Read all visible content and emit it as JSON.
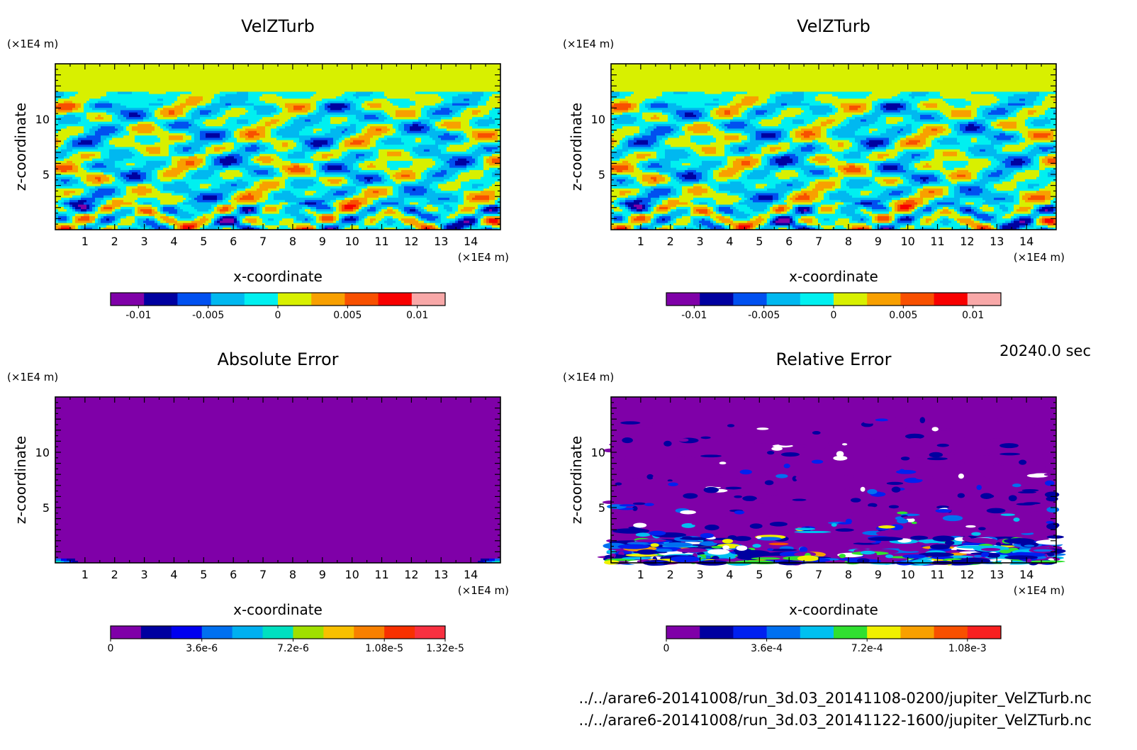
{
  "timestamp": "20240.0 sec",
  "files": [
    "../../arare6-20141008/run_3d.03_20141108-0200/jupiter_VelZTurb.nc",
    "../../arare6-20141008/run_3d.03_20141122-1600/jupiter_VelZTurb.nc"
  ],
  "chart_data": [
    {
      "type": "heatmap",
      "title": "VelZTurb",
      "xlabel": "x-coordinate",
      "ylabel": "z-coordinate",
      "x_unit": "(×1E4 m)",
      "y_unit": "(×1E4 m)",
      "x_ticks": [
        "1",
        "2",
        "3",
        "4",
        "5",
        "6",
        "7",
        "8",
        "9",
        "10",
        "11",
        "12",
        "13",
        "14"
      ],
      "y_ticks": [
        "5",
        "10"
      ],
      "xlim": [
        0,
        15
      ],
      "ylim": [
        0,
        15
      ],
      "field": "turbulence",
      "colorbar": {
        "colors": [
          "#7f00a8",
          "#0000a0",
          "#0050f0",
          "#00b8f0",
          "#00f0f0",
          "#d8f000",
          "#f8a000",
          "#f85000",
          "#f80000",
          "#f8a8a8"
        ],
        "labels": [
          "-0.01",
          "-0.005",
          "0",
          "0.005",
          "0.01"
        ],
        "label_positions": [
          -0.01,
          -0.005,
          0,
          0.005,
          0.01
        ],
        "range": [
          -0.012,
          0.012
        ]
      }
    },
    {
      "type": "heatmap",
      "title": "VelZTurb",
      "xlabel": "x-coordinate",
      "ylabel": "z-coordinate",
      "x_unit": "(×1E4 m)",
      "y_unit": "(×1E4 m)",
      "x_ticks": [
        "1",
        "2",
        "3",
        "4",
        "5",
        "6",
        "7",
        "8",
        "9",
        "10",
        "11",
        "12",
        "13",
        "14"
      ],
      "y_ticks": [
        "5",
        "10"
      ],
      "xlim": [
        0,
        15
      ],
      "ylim": [
        0,
        15
      ],
      "field": "turbulence",
      "colorbar": {
        "colors": [
          "#7f00a8",
          "#0000a0",
          "#0050f0",
          "#00b8f0",
          "#00f0f0",
          "#d8f000",
          "#f8a000",
          "#f85000",
          "#f80000",
          "#f8a8a8"
        ],
        "labels": [
          "-0.01",
          "-0.005",
          "0",
          "0.005",
          "0.01"
        ],
        "label_positions": [
          -0.01,
          -0.005,
          0,
          0.005,
          0.01
        ],
        "range": [
          -0.012,
          0.012
        ]
      }
    },
    {
      "type": "heatmap",
      "title": "Absolute Error",
      "xlabel": "x-coordinate",
      "ylabel": "z-coordinate",
      "x_unit": "(×1E4 m)",
      "y_unit": "(×1E4 m)",
      "x_ticks": [
        "1",
        "2",
        "3",
        "4",
        "5",
        "6",
        "7",
        "8",
        "9",
        "10",
        "11",
        "12",
        "13",
        "14"
      ],
      "y_ticks": [
        "5",
        "10"
      ],
      "xlim": [
        0,
        15
      ],
      "ylim": [
        0,
        15
      ],
      "field": "abserr",
      "colorbar": {
        "colors": [
          "#7f00a8",
          "#0000a0",
          "#0000f0",
          "#0070f0",
          "#00b0f0",
          "#00e0c0",
          "#a0e000",
          "#f8c000",
          "#f88000",
          "#f83000",
          "#f83040"
        ],
        "labels": [
          "0",
          "3.6e-6",
          "7.2e-6",
          "1.08e-5",
          "1.32e-5"
        ],
        "label_positions": [
          0,
          3.6e-06,
          7.2e-06,
          1.08e-05,
          1.32e-05
        ],
        "range": [
          0,
          1.32e-05
        ]
      }
    },
    {
      "type": "heatmap",
      "title": "Relative Error",
      "xlabel": "x-coordinate",
      "ylabel": "z-coordinate",
      "x_unit": "(×1E4 m)",
      "y_unit": "(×1E4 m)",
      "x_ticks": [
        "1",
        "2",
        "3",
        "4",
        "5",
        "6",
        "7",
        "8",
        "9",
        "10",
        "11",
        "12",
        "13",
        "14"
      ],
      "y_ticks": [
        "5",
        "10"
      ],
      "xlim": [
        0,
        15
      ],
      "ylim": [
        0,
        15
      ],
      "field": "relerr",
      "colorbar": {
        "colors": [
          "#7f00a8",
          "#0000a0",
          "#0020f0",
          "#0070f0",
          "#00c0f0",
          "#30e030",
          "#f0f000",
          "#f8a000",
          "#f85000",
          "#f82020"
        ],
        "labels": [
          "0",
          "3.6e-4",
          "7.2e-4",
          "1.08e-3"
        ],
        "label_positions": [
          0,
          0.00036,
          0.00072,
          0.00108
        ],
        "range": [
          0,
          0.0012
        ]
      }
    }
  ]
}
